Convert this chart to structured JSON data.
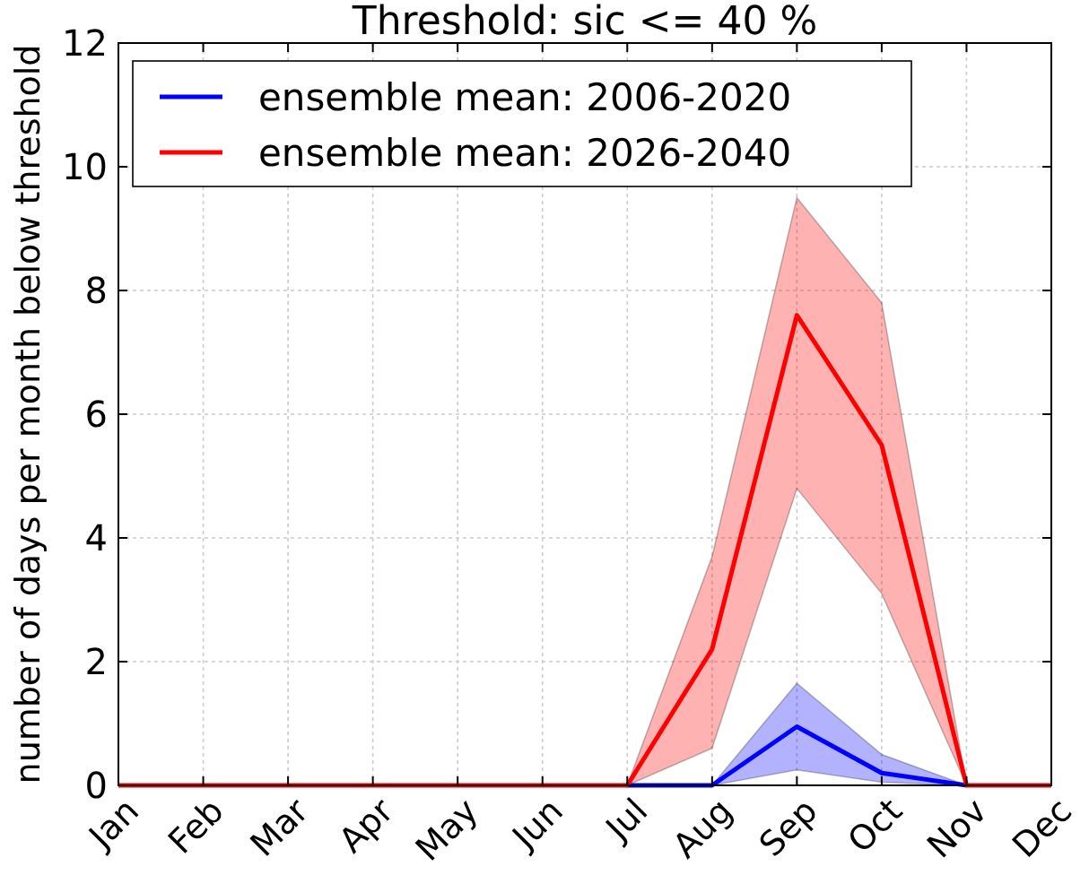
{
  "chart_data": {
    "type": "line",
    "title": "Threshold: sic <= 40 %",
    "ylabel": "number of days per month below threshold",
    "categories": [
      "Jan",
      "Feb",
      "Mar",
      "Apr",
      "May",
      "Jun",
      "Jul",
      "Aug",
      "Sep",
      "Oct",
      "Nov",
      "Dec"
    ],
    "series": [
      {
        "name": "ensemble mean: 2006-2020",
        "color": "#0000ff",
        "values": [
          null,
          null,
          null,
          null,
          null,
          null,
          0,
          0,
          0.95,
          0.2,
          0,
          null
        ],
        "lower": [
          0,
          0,
          0,
          0,
          0,
          0,
          0,
          0,
          0.25,
          0.05,
          0,
          0
        ],
        "upper": [
          0,
          0,
          0,
          0,
          0,
          0,
          0,
          0,
          1.65,
          0.5,
          0,
          0
        ]
      },
      {
        "name": "ensemble mean: 2026-2040",
        "color": "#ff0000",
        "values": [
          0,
          0,
          0,
          0,
          0,
          0,
          0,
          2.2,
          7.6,
          5.5,
          0,
          0
        ],
        "lower": [
          0,
          0,
          0,
          0,
          0,
          0,
          0,
          0.6,
          4.8,
          3.1,
          0,
          0
        ],
        "upper": [
          0,
          0,
          0,
          0,
          0,
          0,
          0,
          3.7,
          9.5,
          7.8,
          0,
          0
        ]
      }
    ],
    "ylim": [
      0,
      12
    ],
    "yticks": [
      0,
      2,
      4,
      6,
      8,
      10,
      12
    ],
    "grid": true,
    "legend": "top left",
    "line_style": "solid",
    "marker": "none"
  }
}
